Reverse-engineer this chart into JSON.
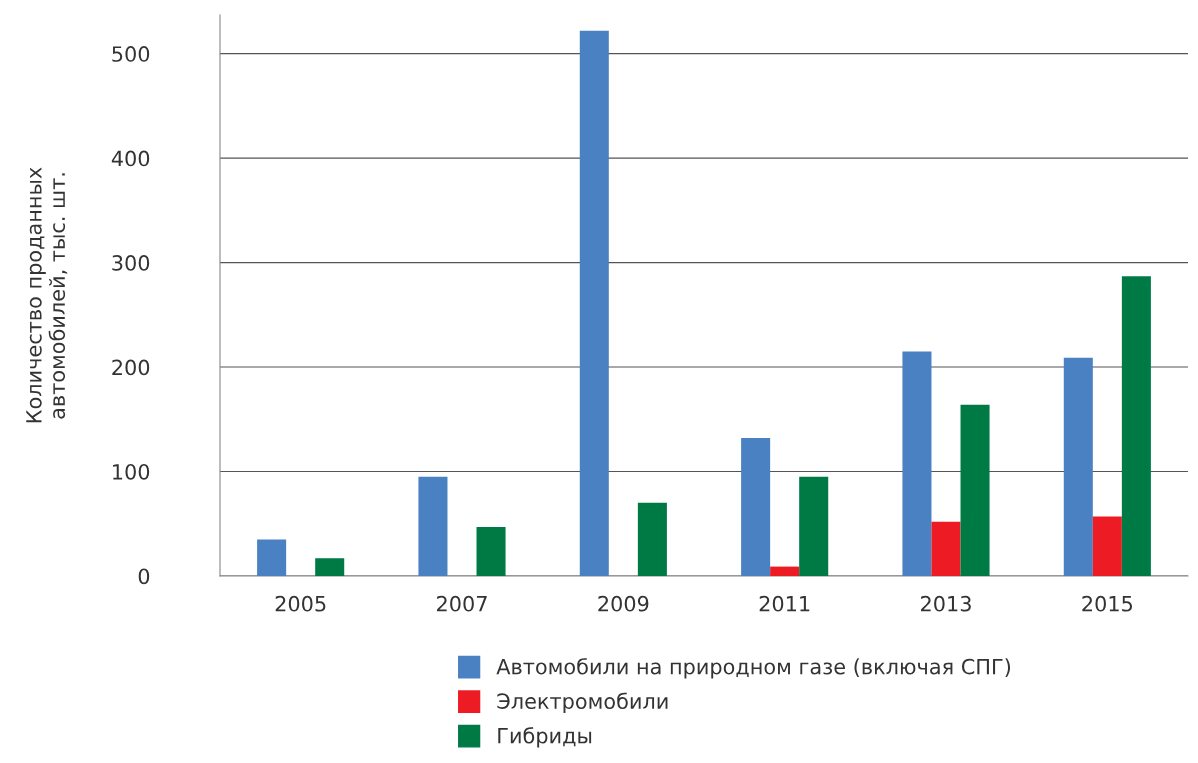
{
  "chart_data": {
    "type": "bar",
    "ylabel": "Количество проданных\nавтомобилей, тыс. шт.",
    "categories": [
      "2005",
      "2007",
      "2009",
      "2011",
      "2013",
      "2015"
    ],
    "series": [
      {
        "name": "Автомобили на природном газе (включая СПГ)",
        "color": "#4a81c2",
        "values": [
          35,
          95,
          522,
          132,
          215,
          209
        ]
      },
      {
        "name": "Электромобили",
        "color": "#ed1c24",
        "values": [
          0,
          0,
          0,
          9,
          52,
          57
        ]
      },
      {
        "name": "Гибриды",
        "color": "#007a45",
        "values": [
          17,
          47,
          70,
          95,
          164,
          287
        ]
      }
    ],
    "ylim": [
      0,
      537
    ],
    "yticks": [
      0,
      100,
      200,
      300,
      400,
      500
    ],
    "grid": "y",
    "legend": "bottom"
  }
}
